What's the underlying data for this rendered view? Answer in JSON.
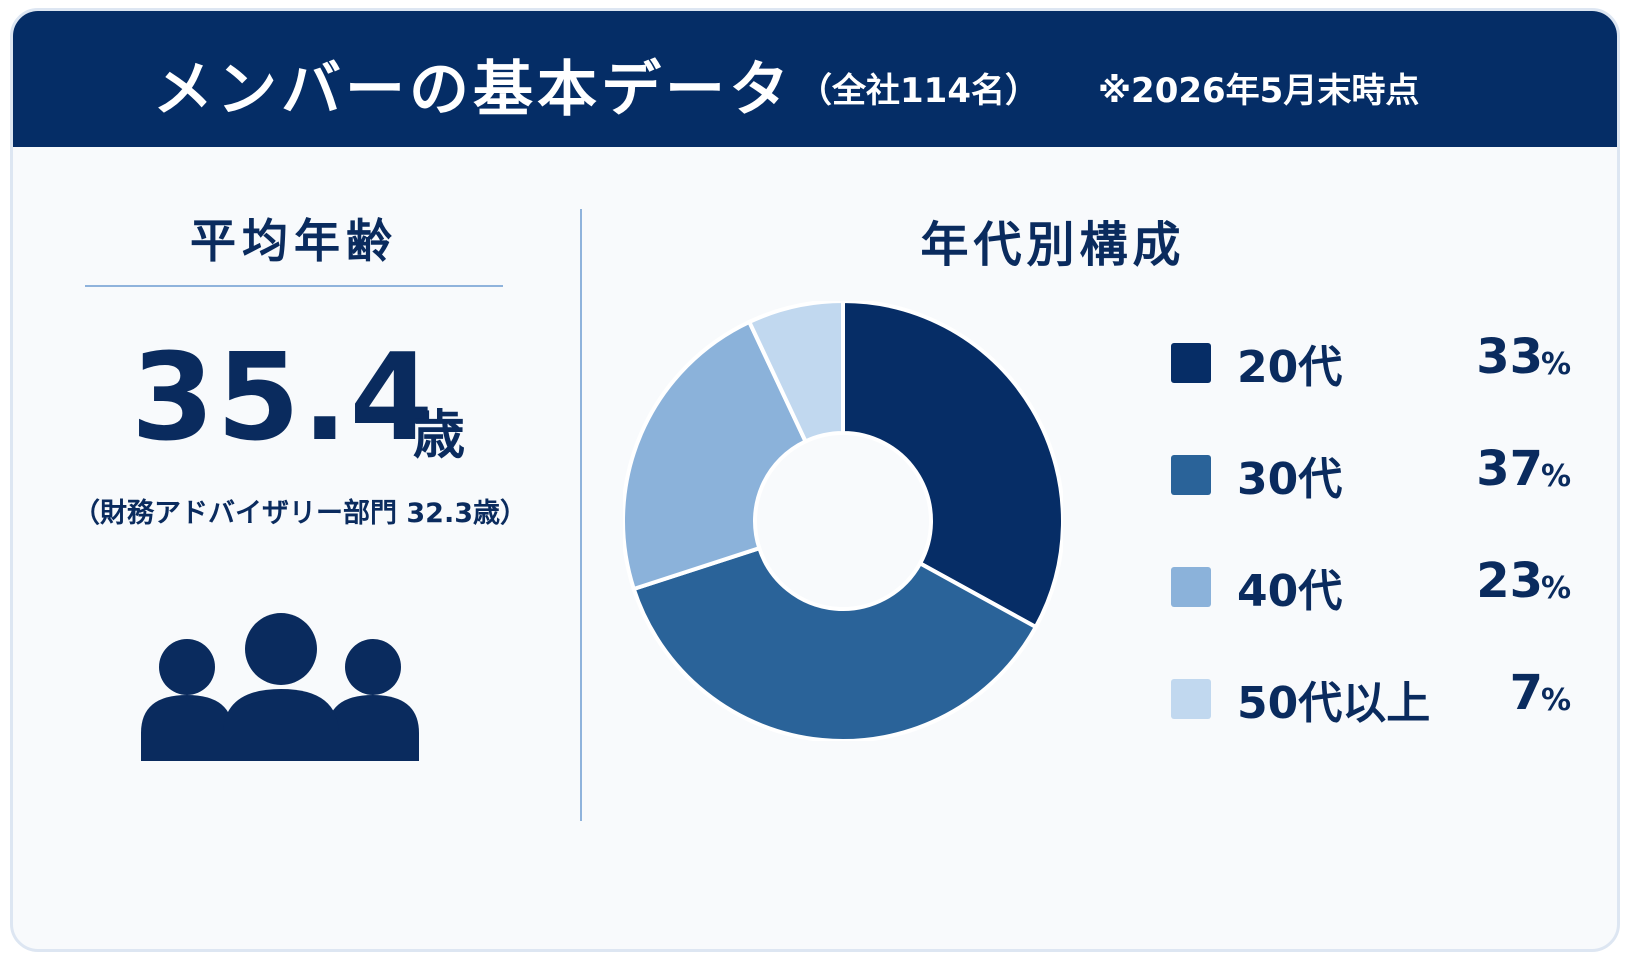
{
  "header": {
    "title": "メンバーの基本データ",
    "subtitle": "（全社114名）",
    "note": "※2026年5月末時点"
  },
  "average_age": {
    "title": "平均年齢",
    "value": "35.4",
    "unit": "歳",
    "note": "（財務アドバイザリー部門 32.3歳）",
    "icon": "people-group-icon"
  },
  "colors": {
    "navy": "#052d66",
    "s20": "#062d66",
    "s30": "#2a6399",
    "s40": "#8bb2da",
    "s50": "#c1d8ef"
  },
  "chart_data": {
    "type": "pie",
    "donut": true,
    "title": "年代別構成",
    "unit": "%",
    "categories": [
      "20代",
      "30代",
      "40代",
      "50代以上"
    ],
    "values": [
      33,
      37,
      23,
      7
    ],
    "value_labels": [
      "33",
      "37",
      "23",
      "7"
    ],
    "colors": [
      "#062d66",
      "#2a6399",
      "#8bb2da",
      "#c1d8ef"
    ],
    "legend_position": "right"
  }
}
